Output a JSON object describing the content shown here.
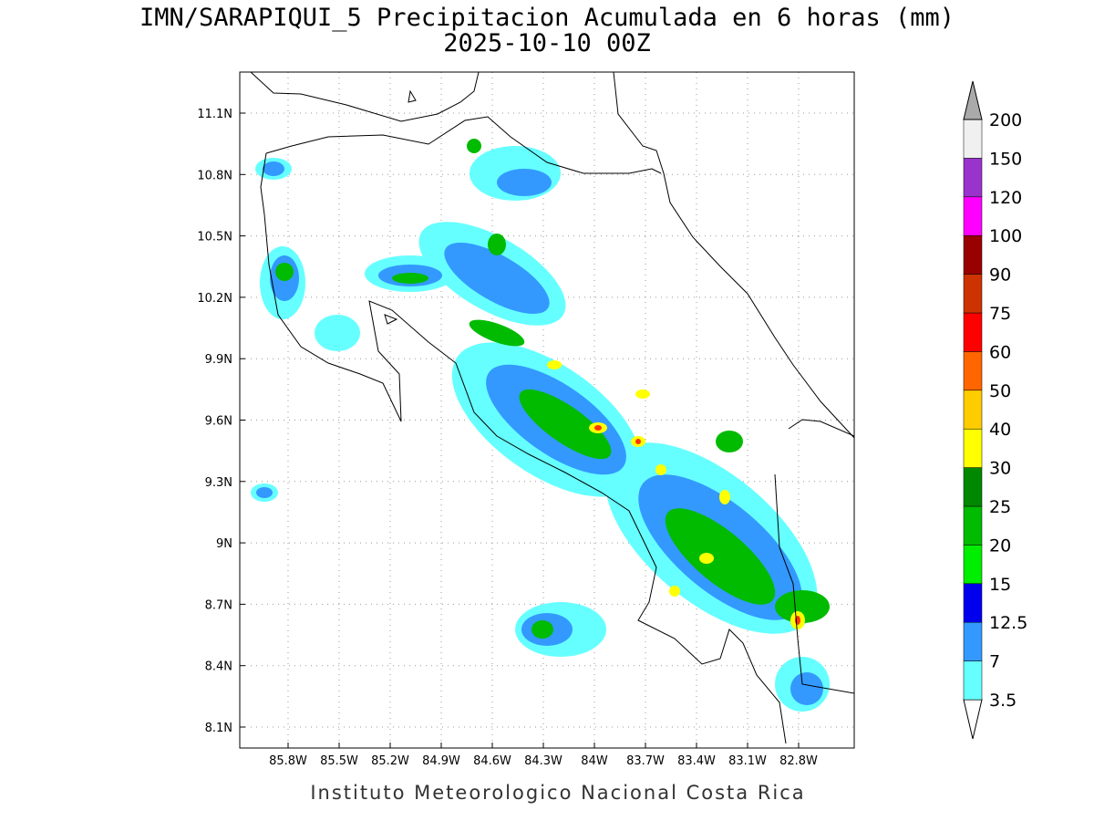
{
  "header": {
    "title": "IMN/SARAPIQUI_5 Precipitacion Acumulada en 6 horas (mm)",
    "subtitle": "2025-10-10 00Z"
  },
  "x_axis": {
    "ticks": [
      "85.8W",
      "85.5W",
      "85.2W",
      "84.9W",
      "84.6W",
      "84.3W",
      "84W",
      "83.7W",
      "83.4W",
      "83.1W",
      "82.8W"
    ]
  },
  "y_axis": {
    "ticks": [
      "11.1N",
      "10.8N",
      "10.5N",
      "10.2N",
      "9.9N",
      "9.6N",
      "9.3N",
      "9N",
      "8.7N",
      "8.4N",
      "8.1N"
    ]
  },
  "colorbar": {
    "labels": [
      "3.5",
      "7",
      "12.5",
      "15",
      "20",
      "25",
      "30",
      "40",
      "50",
      "60",
      "75",
      "90",
      "100",
      "120",
      "150",
      "200"
    ],
    "colors": [
      "#ffffff",
      "#66ffff",
      "#3399ff",
      "#0000ee",
      "#00ee00",
      "#00bb00",
      "#008800",
      "#ffff00",
      "#ffcc00",
      "#ff6600",
      "#ff0000",
      "#cc3300",
      "#990000",
      "#ff00ff",
      "#9933cc",
      "#f0f0f0",
      "#aaaaaa"
    ]
  },
  "footer": "Instituto Meteorologico Nacional Costa Rica"
}
